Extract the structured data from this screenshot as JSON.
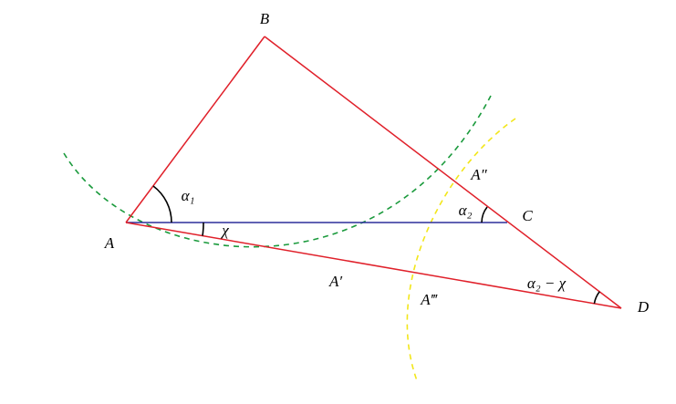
{
  "points": {
    "A": "A",
    "B": "B",
    "C": "C",
    "D": "D",
    "A1": "A′",
    "A2": "A″",
    "A3": "A‴"
  },
  "angles": {
    "alpha1": "α₁",
    "alpha2": "α₂",
    "chi": "χ",
    "alpha2_minus_chi": "α₂ − χ"
  }
}
